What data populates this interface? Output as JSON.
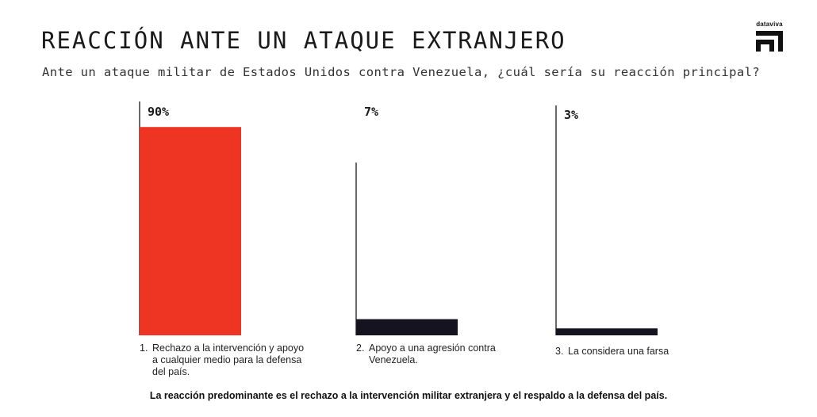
{
  "header": {
    "title": "REACCIÓN ANTE UN ATAQUE EXTRANJERO",
    "subtitle": "Ante un ataque militar de Estados Unidos contra Venezuela, ¿cuál sería su reacción principal?"
  },
  "brand": {
    "name": "dataviva"
  },
  "colors": {
    "accent": "#ee3524",
    "dark": "#15131f"
  },
  "chart_data": {
    "type": "bar",
    "title": "REACCIÓN ANTE UN ATAQUE EXTRANJERO",
    "subtitle": "Ante un ataque militar de Estados Unidos contra Venezuela, ¿cuál sería su reacción principal?",
    "categories": [
      "1. Rechazo a la intervención y apoyo a cualquier medio para la defensa del país.",
      "2. Apoyo a una agresión contra Venezuela.",
      "3. La considera una farsa"
    ],
    "values": [
      90,
      7,
      3
    ],
    "value_labels": [
      "90%",
      "7%",
      "3%"
    ],
    "bar_colors": [
      "#ee3524",
      "#15131f",
      "#15131f"
    ],
    "unit": "%",
    "ylim": [
      0,
      100
    ],
    "grid": false,
    "legend": "none"
  },
  "categories_display": [
    {
      "num": "1.",
      "text": "Rechazo a la intervención y apoyo a cualquier medio para la defensa del país."
    },
    {
      "num": "2.",
      "text": "Apoyo a una agresión contra Venezuela."
    },
    {
      "num": "3.",
      "text": "La considera una farsa"
    }
  ],
  "footnote": "La reacción predominante es el rechazo a la intervención militar extranjera y el respaldo a la defensa del país."
}
